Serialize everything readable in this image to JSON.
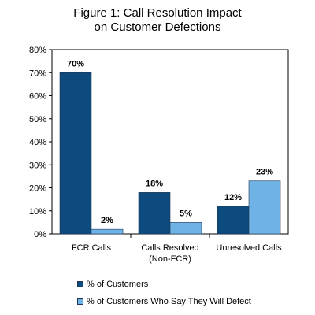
{
  "chart_data": {
    "type": "bar",
    "title_lines": [
      "Figure 1: Call Resolution Impact",
      "on Customer Defections"
    ],
    "categories": [
      [
        "FCR Calls"
      ],
      [
        "Calls Resolved",
        "(Non-FCR)"
      ],
      [
        "Unresolved Calls"
      ]
    ],
    "series": [
      {
        "name": "% of Customers",
        "values": [
          70,
          18,
          12
        ],
        "labels": [
          "70%",
          "18%",
          "12%"
        ],
        "color": "#0d4a7d"
      },
      {
        "name": "% of Customers Who Say They Will Defect",
        "values": [
          2,
          5,
          23
        ],
        "labels": [
          "2%",
          "5%",
          "23%"
        ],
        "color": "#6fb3e6"
      }
    ],
    "ylim": [
      0,
      80
    ],
    "yticks": [
      0,
      10,
      20,
      30,
      40,
      50,
      60,
      70,
      80
    ],
    "ytick_labels": [
      "0%",
      "10%",
      "20%",
      "30%",
      "40%",
      "50%",
      "60%",
      "70%",
      "80%"
    ],
    "grid": false,
    "legend_position": "bottom"
  }
}
